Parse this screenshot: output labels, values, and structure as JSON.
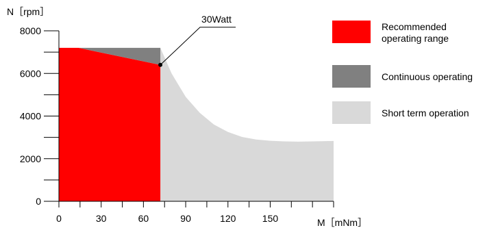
{
  "chart_data": {
    "type": "area",
    "title": "",
    "ylabel": "N［rpm］",
    "xlabel": "M［mNm］",
    "xlim": [
      0,
      195
    ],
    "ylim": [
      0,
      8000
    ],
    "x_ticks": [
      0,
      30,
      60,
      90,
      120,
      150
    ],
    "x_minor_ticks": [
      15,
      45,
      75,
      105,
      135,
      165,
      180,
      195
    ],
    "y_ticks": [
      0,
      2000,
      4000,
      6000,
      8000
    ],
    "y_minor_ticks": [
      1000,
      3000,
      5000,
      7000
    ],
    "grid": false,
    "legend_position": "right",
    "series": [
      {
        "name": "Recommended operating range",
        "color": "#ff0000",
        "points": [
          [
            0,
            0
          ],
          [
            0,
            7200
          ],
          [
            14,
            7200
          ],
          [
            72,
            6400
          ],
          [
            72,
            0
          ]
        ]
      },
      {
        "name": "Continuous operating",
        "color": "#808080",
        "points": [
          [
            14,
            7200
          ],
          [
            72,
            7200
          ],
          [
            72,
            6400
          ]
        ]
      },
      {
        "name": "Short term operation",
        "color": "#d9d9d9",
        "points": [
          [
            72,
            0
          ],
          [
            72,
            7200
          ],
          [
            80,
            6000
          ],
          [
            90,
            4900
          ],
          [
            100,
            4150
          ],
          [
            110,
            3600
          ],
          [
            120,
            3250
          ],
          [
            130,
            3020
          ],
          [
            140,
            2900
          ],
          [
            150,
            2840
          ],
          [
            160,
            2810
          ],
          [
            170,
            2800
          ],
          [
            180,
            2810
          ],
          [
            195,
            2830
          ],
          [
            195,
            0
          ]
        ]
      }
    ],
    "annotations": [
      {
        "text": "30Watt",
        "x": 72,
        "y": 6400
      }
    ]
  }
}
